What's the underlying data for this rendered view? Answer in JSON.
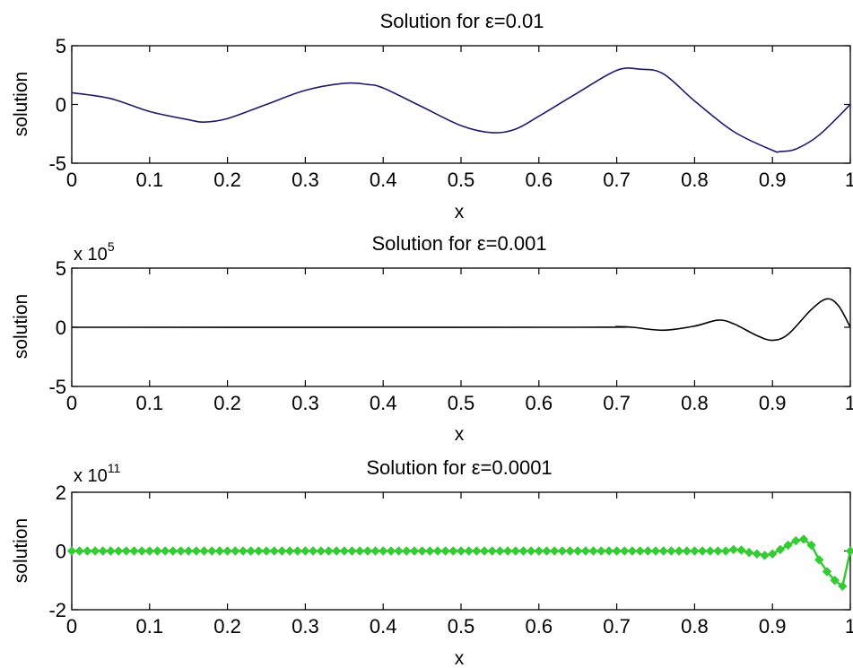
{
  "chart_data": [
    {
      "type": "line",
      "title": "Solution for ε=0.01",
      "xlabel": "x",
      "ylabel": "solution",
      "xlim": [
        0,
        1
      ],
      "ylim": [
        -5,
        5
      ],
      "x_ticks": [
        "0",
        "0.1",
        "0.2",
        "0.3",
        "0.4",
        "0.5",
        "0.6",
        "0.7",
        "0.8",
        "0.9",
        "1"
      ],
      "y_ticks": [
        "-5",
        "0",
        "5"
      ],
      "y_scale_label": "",
      "y_scale_exponent": "",
      "marker": "none",
      "grid": false,
      "color": "#1a1a6e",
      "series": [
        {
          "x": [
            0,
            0.05,
            0.1,
            0.15,
            0.17,
            0.2,
            0.25,
            0.3,
            0.35,
            0.38,
            0.4,
            0.45,
            0.5,
            0.54,
            0.57,
            0.6,
            0.65,
            0.7,
            0.73,
            0.76,
            0.8,
            0.85,
            0.9,
            0.91,
            0.93,
            0.96,
            1.0
          ],
          "y": [
            1.0,
            0.5,
            -0.6,
            -1.3,
            -1.5,
            -1.2,
            0.0,
            1.2,
            1.8,
            1.7,
            1.4,
            -0.2,
            -1.8,
            -2.4,
            -2.1,
            -1.0,
            1.0,
            2.9,
            3.0,
            2.6,
            0.3,
            -2.3,
            -3.9,
            -4.0,
            -3.8,
            -2.6,
            0.0
          ]
        }
      ]
    },
    {
      "type": "line",
      "title": "Solution for ε=0.001",
      "xlabel": "x",
      "ylabel": "solution",
      "xlim": [
        0,
        1
      ],
      "ylim": [
        -5,
        5
      ],
      "x_ticks": [
        "0",
        "0.1",
        "0.2",
        "0.3",
        "0.4",
        "0.5",
        "0.6",
        "0.7",
        "0.8",
        "0.9",
        "1"
      ],
      "y_ticks": [
        "-5",
        "0",
        "5"
      ],
      "y_scale_label": "x 10",
      "y_scale_exponent": "5",
      "marker": "none",
      "grid": false,
      "color": "#000000",
      "series": [
        {
          "x": [
            0,
            0.65,
            0.7,
            0.72,
            0.76,
            0.8,
            0.83,
            0.85,
            0.88,
            0.9,
            0.92,
            0.95,
            0.97,
            0.985,
            1.0
          ],
          "y": [
            0,
            0,
            0.05,
            0,
            -0.25,
            0.1,
            0.6,
            0.3,
            -0.7,
            -1.1,
            -0.6,
            1.5,
            2.4,
            1.8,
            0.0
          ]
        }
      ]
    },
    {
      "type": "line",
      "title": "Solution for ε=0.0001",
      "xlabel": "x",
      "ylabel": "solution",
      "xlim": [
        0,
        1
      ],
      "ylim": [
        -2,
        2
      ],
      "x_ticks": [
        "0",
        "0.1",
        "0.2",
        "0.3",
        "0.4",
        "0.5",
        "0.6",
        "0.7",
        "0.8",
        "0.9",
        "1"
      ],
      "y_ticks": [
        "-2",
        "0",
        "2"
      ],
      "y_scale_label": "x 10",
      "y_scale_exponent": "11",
      "marker": "diamond",
      "grid": false,
      "color": "#33cc33",
      "series": [
        {
          "x": [
            0,
            0.84,
            0.85,
            0.86,
            0.87,
            0.88,
            0.89,
            0.9,
            0.91,
            0.92,
            0.93,
            0.94,
            0.95,
            0.96,
            0.97,
            0.98,
            0.99,
            1.0
          ],
          "y": [
            0,
            0,
            0.05,
            0.03,
            -0.05,
            -0.1,
            -0.15,
            -0.1,
            0.05,
            0.2,
            0.35,
            0.4,
            0.2,
            -0.3,
            -0.7,
            -1.0,
            -1.2,
            0.0
          ]
        }
      ]
    }
  ]
}
